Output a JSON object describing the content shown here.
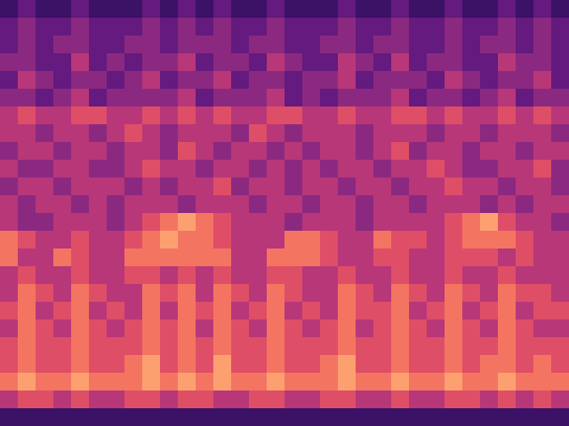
{
  "chart_data": {
    "type": "heatmap",
    "tick_labels": false,
    "zlim": [
      0,
      10
    ],
    "cells": [
      [
        2,
        3,
        2,
        2,
        3,
        2,
        2,
        2,
        3,
        2,
        3,
        2,
        3,
        2,
        2,
        3,
        2,
        2,
        2,
        3,
        2,
        2,
        3,
        2,
        2,
        3,
        2,
        2,
        3,
        2,
        3,
        2
      ],
      [
        3,
        4,
        3,
        3,
        4,
        3,
        3,
        3,
        4,
        3,
        4,
        3,
        4,
        3,
        3,
        4,
        3,
        3,
        3,
        4,
        3,
        3,
        4,
        3,
        3,
        4,
        3,
        3,
        4,
        3,
        4,
        3
      ],
      [
        3,
        4,
        3,
        4,
        4,
        3,
        3,
        4,
        4,
        3,
        4,
        4,
        4,
        3,
        4,
        4,
        3,
        3,
        4,
        4,
        3,
        4,
        4,
        3,
        3,
        4,
        3,
        4,
        4,
        3,
        4,
        3
      ],
      [
        4,
        4,
        3,
        3,
        5,
        3,
        4,
        3,
        4,
        4,
        5,
        3,
        4,
        4,
        3,
        5,
        4,
        3,
        3,
        5,
        4,
        3,
        5,
        3,
        4,
        4,
        3,
        3,
        5,
        4,
        4,
        3
      ],
      [
        3,
        5,
        4,
        3,
        4,
        4,
        3,
        4,
        5,
        3,
        4,
        4,
        5,
        3,
        4,
        4,
        3,
        4,
        4,
        5,
        3,
        4,
        4,
        4,
        3,
        5,
        4,
        3,
        4,
        4,
        5,
        3
      ],
      [
        4,
        4,
        3,
        4,
        5,
        3,
        4,
        4,
        4,
        4,
        5,
        3,
        4,
        4,
        4,
        5,
        3,
        4,
        3,
        4,
        4,
        4,
        5,
        3,
        4,
        4,
        3,
        4,
        5,
        3,
        4,
        4
      ],
      [
        5,
        6,
        5,
        5,
        6,
        6,
        5,
        5,
        6,
        5,
        6,
        5,
        6,
        5,
        5,
        6,
        6,
        5,
        5,
        6,
        5,
        5,
        6,
        6,
        5,
        6,
        5,
        5,
        6,
        5,
        6,
        5
      ],
      [
        5,
        5,
        4,
        5,
        5,
        4,
        5,
        6,
        5,
        4,
        5,
        5,
        5,
        4,
        6,
        5,
        4,
        5,
        5,
        5,
        4,
        5,
        5,
        5,
        4,
        5,
        5,
        4,
        5,
        5,
        5,
        4
      ],
      [
        4,
        5,
        5,
        4,
        5,
        5,
        4,
        5,
        5,
        4,
        6,
        5,
        4,
        5,
        5,
        4,
        5,
        4,
        5,
        5,
        4,
        5,
        6,
        4,
        5,
        5,
        4,
        5,
        5,
        4,
        5,
        5
      ],
      [
        5,
        4,
        4,
        5,
        5,
        4,
        4,
        5,
        6,
        5,
        5,
        4,
        5,
        5,
        4,
        5,
        4,
        5,
        4,
        5,
        5,
        4,
        5,
        5,
        6,
        5,
        4,
        4,
        5,
        5,
        6,
        4
      ],
      [
        4,
        5,
        5,
        4,
        5,
        5,
        5,
        4,
        5,
        4,
        5,
        5,
        6,
        4,
        5,
        5,
        4,
        5,
        5,
        4,
        5,
        5,
        4,
        5,
        5,
        6,
        5,
        5,
        4,
        5,
        5,
        4
      ],
      [
        5,
        4,
        5,
        5,
        4,
        5,
        4,
        5,
        5,
        5,
        4,
        5,
        5,
        5,
        4,
        5,
        5,
        4,
        5,
        5,
        4,
        5,
        5,
        4,
        5,
        5,
        5,
        4,
        5,
        4,
        5,
        5
      ],
      [
        5,
        4,
        4,
        5,
        5,
        5,
        4,
        5,
        6,
        7,
        8,
        7,
        6,
        5,
        5,
        5,
        4,
        5,
        5,
        5,
        4,
        5,
        5,
        5,
        5,
        6,
        7,
        8,
        6,
        5,
        5,
        4
      ],
      [
        7,
        6,
        5,
        5,
        6,
        5,
        5,
        6,
        7,
        8,
        7,
        7,
        6,
        5,
        5,
        5,
        7,
        7,
        6,
        5,
        5,
        7,
        6,
        6,
        5,
        6,
        7,
        7,
        7,
        6,
        5,
        5
      ],
      [
        7,
        5,
        5,
        7,
        6,
        5,
        5,
        7,
        7,
        7,
        7,
        7,
        7,
        5,
        5,
        7,
        7,
        7,
        6,
        5,
        5,
        6,
        6,
        5,
        5,
        6,
        6,
        6,
        5,
        6,
        5,
        5
      ],
      [
        5,
        6,
        5,
        5,
        6,
        5,
        5,
        6,
        6,
        5,
        6,
        5,
        6,
        5,
        5,
        6,
        6,
        5,
        5,
        6,
        5,
        5,
        6,
        5,
        5,
        6,
        5,
        5,
        6,
        5,
        5,
        5
      ],
      [
        5,
        7,
        6,
        5,
        7,
        6,
        5,
        5,
        7,
        6,
        7,
        5,
        7,
        6,
        5,
        7,
        6,
        5,
        5,
        7,
        6,
        5,
        7,
        6,
        5,
        7,
        6,
        5,
        7,
        6,
        6,
        5
      ],
      [
        6,
        7,
        5,
        6,
        7,
        5,
        6,
        5,
        7,
        5,
        7,
        6,
        7,
        5,
        6,
        7,
        5,
        6,
        5,
        7,
        6,
        6,
        7,
        5,
        6,
        7,
        5,
        6,
        7,
        5,
        6,
        6
      ],
      [
        5,
        7,
        6,
        5,
        7,
        6,
        5,
        6,
        7,
        6,
        7,
        5,
        7,
        6,
        5,
        7,
        6,
        5,
        6,
        7,
        5,
        6,
        7,
        6,
        5,
        7,
        6,
        5,
        7,
        6,
        5,
        5
      ],
      [
        6,
        7,
        6,
        6,
        7,
        6,
        6,
        6,
        7,
        6,
        7,
        6,
        7,
        6,
        6,
        7,
        6,
        6,
        6,
        7,
        6,
        6,
        7,
        6,
        6,
        7,
        6,
        6,
        7,
        6,
        6,
        6
      ],
      [
        6,
        7,
        6,
        6,
        7,
        6,
        6,
        7,
        8,
        6,
        7,
        6,
        8,
        6,
        6,
        7,
        6,
        6,
        7,
        8,
        6,
        6,
        7,
        6,
        6,
        7,
        6,
        7,
        7,
        6,
        7,
        6
      ],
      [
        7,
        8,
        7,
        7,
        8,
        7,
        7,
        7,
        8,
        7,
        8,
        7,
        8,
        7,
        7,
        8,
        7,
        7,
        7,
        8,
        7,
        7,
        8,
        7,
        7,
        8,
        7,
        7,
        8,
        7,
        7,
        7
      ],
      [
        5,
        6,
        6,
        5,
        6,
        5,
        5,
        6,
        6,
        5,
        6,
        6,
        5,
        5,
        6,
        6,
        5,
        5,
        6,
        6,
        5,
        5,
        6,
        5,
        5,
        6,
        6,
        5,
        6,
        5,
        6,
        5
      ],
      [
        2,
        2,
        2,
        2,
        2,
        2,
        2,
        2,
        2,
        2,
        2,
        2,
        2,
        2,
        2,
        2,
        2,
        2,
        2,
        2,
        2,
        2,
        2,
        2,
        2,
        2,
        2,
        2,
        2,
        2,
        2,
        2
      ]
    ]
  }
}
